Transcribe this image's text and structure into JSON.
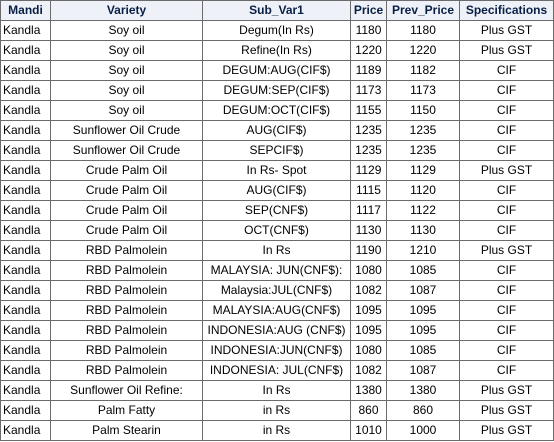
{
  "table": {
    "headers": [
      "Mandi",
      "Variety",
      "Sub_Var1",
      "Price",
      "Prev_Price",
      "Specifications"
    ],
    "rows": [
      [
        "Kandla",
        "Soy oil",
        "Degum(In Rs)",
        "1180",
        "1180",
        "Plus GST"
      ],
      [
        "Kandla",
        "Soy oil",
        "Refine(In Rs)",
        "1220",
        "1220",
        "Plus GST"
      ],
      [
        "Kandla",
        "Soy oil",
        "DEGUM:AUG(CIF$)",
        "1189",
        "1182",
        "CIF"
      ],
      [
        "Kandla",
        "Soy oil",
        "DEGUM:SEP(CIF$)",
        "1173",
        "1173",
        "CIF"
      ],
      [
        "Kandla",
        "Soy oil",
        "DEGUM:OCT(CIF$)",
        "1155",
        "1150",
        "CIF"
      ],
      [
        "Kandla",
        "Sunflower Oil Crude",
        "AUG(CIF$)",
        "1235",
        "1235",
        "CIF"
      ],
      [
        "Kandla",
        "Sunflower Oil Crude",
        "SEPCIF$)",
        "1235",
        "1235",
        "CIF"
      ],
      [
        "Kandla",
        "Crude Palm Oil",
        "In Rs- Spot",
        "1129",
        "1129",
        "Plus GST"
      ],
      [
        "Kandla",
        "Crude Palm Oil",
        "AUG(CIF$)",
        "1115",
        "1120",
        "CIF"
      ],
      [
        "Kandla",
        "Crude Palm Oil",
        "SEP(CNF$)",
        "1117",
        "1122",
        "CIF"
      ],
      [
        "Kandla",
        "Crude Palm Oil",
        "OCT(CNF$)",
        "1130",
        "1130",
        "CIF"
      ],
      [
        "Kandla",
        "RBD Palmolein",
        "In Rs",
        "1190",
        "1210",
        "Plus GST"
      ],
      [
        "Kandla",
        "RBD Palmolein",
        "MALAYSIA: JUN(CNF$):",
        "1080",
        "1085",
        "CIF"
      ],
      [
        "Kandla",
        "RBD Palmolein",
        "Malaysia:JUL(CNF$)",
        "1082",
        "1087",
        "CIF"
      ],
      [
        "Kandla",
        "RBD Palmolein",
        "MALAYSIA:AUG(CNF$)",
        "1095",
        "1095",
        "CIF"
      ],
      [
        "Kandla",
        "RBD Palmolein",
        "INDONESIA:AUG (CNF$)",
        "1095",
        "1095",
        "CIF"
      ],
      [
        "Kandla",
        "RBD Palmolein",
        "INDONESIA:JUN(CNF$)",
        "1080",
        "1085",
        "CIF"
      ],
      [
        "Kandla",
        "RBD Palmolein",
        "INDONESIA: JUL(CNF$)",
        "1082",
        "1087",
        "CIF"
      ],
      [
        "Kandla",
        "Sunflower Oil Refine:",
        "In Rs",
        "1380",
        "1380",
        "Plus GST"
      ],
      [
        "Kandla",
        "Palm Fatty",
        "in Rs",
        "860",
        "860",
        "Plus GST"
      ],
      [
        "Kandla",
        "Palm Stearin",
        "in Rs",
        "1010",
        "1000",
        "Plus GST"
      ]
    ]
  }
}
